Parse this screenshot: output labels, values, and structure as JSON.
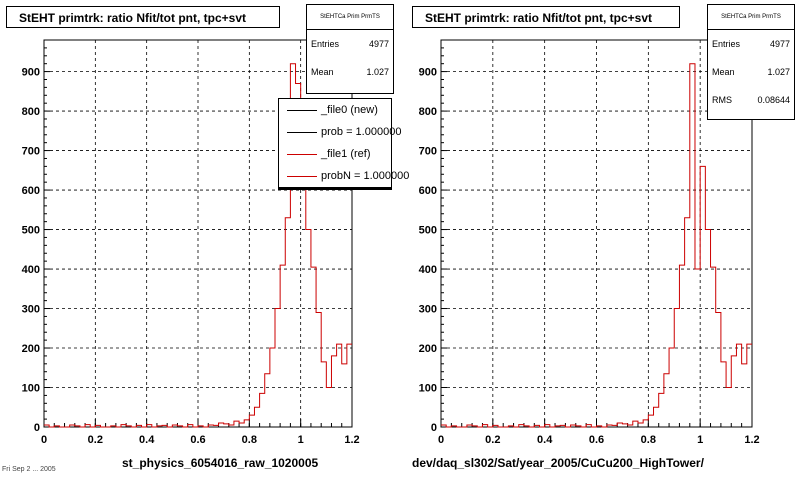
{
  "colors": {
    "ref": "#cc0000",
    "new": "#000000",
    "bg": "#ffffff"
  },
  "panels": [
    {
      "title": "StEHT primtrk: ratio Nfit/tot pnt, tpc+svt",
      "xcaption": "st_physics_6054016_raw_1020005",
      "stats": {
        "header": "StEHTCa Prim PrmTS",
        "entries_label": "Entries",
        "entries": "4977",
        "mean_label": "Mean",
        "mean": "1.027"
      },
      "legend": [
        {
          "label": "_file0 (new)",
          "color": "#000000"
        },
        {
          "label": "prob = 1.000000",
          "color": "#000000"
        },
        {
          "label": "_file1 (ref)",
          "color": "#cc0000"
        },
        {
          "label": "probN = 1.000000",
          "color": "#cc0000"
        }
      ]
    },
    {
      "title": "StEHT primtrk: ratio Nfit/tot pnt, tpc+svt",
      "xcaption": "dev/daq_sl302/Sat/year_2005/CuCu200_HighTower/",
      "stats": {
        "header": "StEHTCa Prim PrmTS",
        "entries_label": "Entries",
        "entries": "4977",
        "mean_label": "Mean",
        "mean": "1.027",
        "rms_label": "RMS",
        "rms": "0.08644"
      }
    }
  ],
  "corner_text": "Fri Sep 2 ... 2005",
  "chart_data": [
    {
      "type": "bar",
      "title": "StEHT primtrk: ratio Nfit/tot pnt, tpc+svt",
      "xlabel": "st_physics_6054016_raw_1020005",
      "ylabel": "",
      "xlim": [
        0,
        1.2
      ],
      "ylim": [
        0,
        980
      ],
      "xticks": [
        "0",
        "0.2",
        "0.4",
        "0.6",
        "0.8",
        "1",
        "1.2"
      ],
      "yticks": [
        "0",
        "100",
        "200",
        "300",
        "400",
        "500",
        "600",
        "700",
        "800",
        "900"
      ],
      "grid": true,
      "series": [
        {
          "name": "_file1 (ref)",
          "bin_width": 0.02,
          "x_start": 0.0,
          "values": [
            5,
            0,
            3,
            0,
            0,
            5,
            3,
            0,
            6,
            0,
            4,
            0,
            0,
            3,
            0,
            6,
            3,
            0,
            4,
            0,
            6,
            0,
            3,
            4,
            0,
            5,
            3,
            0,
            6,
            0,
            3,
            0,
            5,
            4,
            10,
            8,
            5,
            15,
            10,
            18,
            30,
            50,
            85,
            135,
            200,
            300,
            410,
            530,
            920,
            870,
            790,
            500,
            405,
            290,
            165,
            100,
            180,
            210,
            160,
            210
          ]
        }
      ]
    },
    {
      "type": "bar",
      "title": "StEHT primtrk: ratio Nfit/tot pnt, tpc+svt",
      "xlabel": "dev/daq_sl302/Sat/year_2005/CuCu200_HighTower/",
      "ylabel": "",
      "xlim": [
        0,
        1.2
      ],
      "ylim": [
        0,
        980
      ],
      "xticks": [
        "0",
        "0.2",
        "0.4",
        "0.6",
        "0.8",
        "1",
        "1.2"
      ],
      "yticks": [
        "0",
        "100",
        "200",
        "300",
        "400",
        "500",
        "600",
        "700",
        "800",
        "900"
      ],
      "grid": true,
      "series": [
        {
          "name": "_file1 (ref)",
          "bin_width": 0.02,
          "x_start": 0.0,
          "values": [
            5,
            0,
            3,
            0,
            0,
            5,
            3,
            0,
            6,
            0,
            4,
            0,
            0,
            3,
            0,
            6,
            3,
            0,
            4,
            0,
            6,
            0,
            3,
            4,
            0,
            5,
            3,
            0,
            6,
            0,
            3,
            0,
            5,
            4,
            10,
            8,
            5,
            15,
            10,
            18,
            30,
            50,
            85,
            135,
            200,
            300,
            410,
            530,
            920,
            400,
            660,
            500,
            405,
            290,
            165,
            100,
            180,
            210,
            160,
            210
          ]
        }
      ]
    }
  ]
}
